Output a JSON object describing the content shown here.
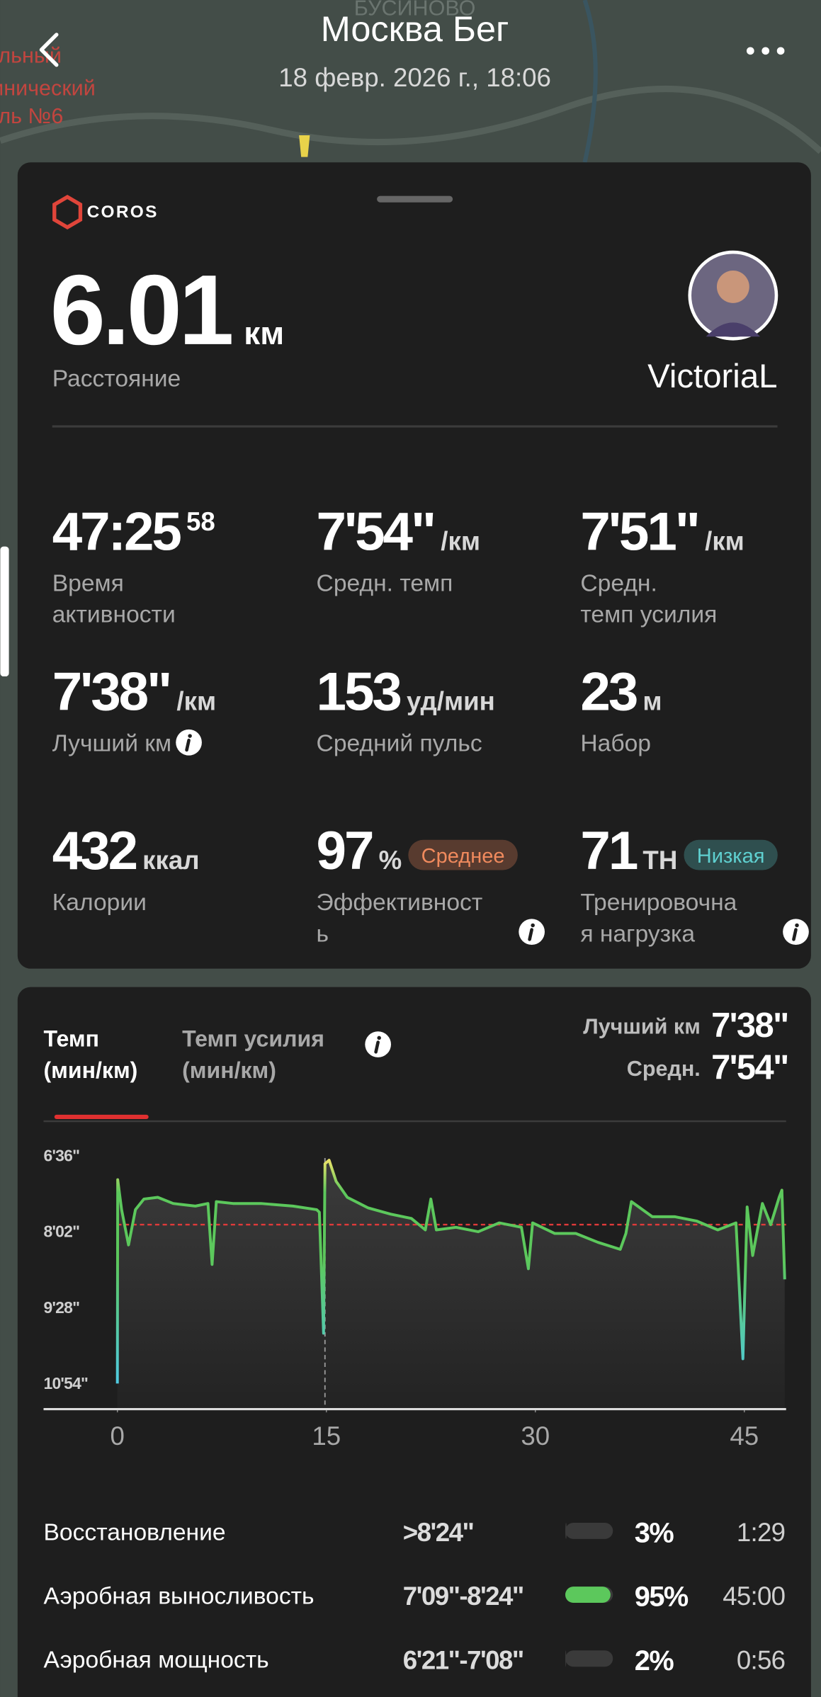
{
  "header": {
    "title": "Москва Бег",
    "subtitle": "18 февр. 2026 г., 18:06"
  },
  "map_labels": [
    "БУСИНОВО",
    "льный",
    "инический",
    "ль №6"
  ],
  "card": {
    "brand": "COROS",
    "distance": {
      "value": "6.01",
      "unit": "км",
      "label": "Расстояние"
    },
    "user": "VictoriaL",
    "stats": [
      {
        "value": "47:25",
        "sup": "58",
        "label": [
          "Время",
          "активности"
        ]
      },
      {
        "value": "7'54\"",
        "unit": "/км",
        "label": [
          "Средн. темп"
        ]
      },
      {
        "value": "7'51\"",
        "unit": "/км",
        "label": [
          "Средн.",
          "темп усилия"
        ]
      },
      {
        "value": "7'38\"",
        "unit": "/км",
        "label": [
          "Лучший км"
        ],
        "info_icon": true
      },
      {
        "value": "153",
        "unit": "уд/мин",
        "label": [
          "Средний пульс"
        ]
      },
      {
        "value": "23",
        "unit": "м",
        "label": [
          "Набор"
        ]
      },
      {
        "value": "432",
        "unit": "ккал",
        "label": [
          "Калории"
        ]
      },
      {
        "value": "97",
        "unit": "%",
        "badge": "Среднее",
        "badge_color": "#f08a5d",
        "label": [
          "Эффективност",
          "ь"
        ],
        "info_icon": true
      },
      {
        "value": "71",
        "unit": "ТН",
        "badge": "Низкая",
        "badge_color": "#5fd0d0",
        "label": [
          "Тренировочна",
          "я нагрузка"
        ],
        "info_icon": true
      }
    ]
  },
  "chart_section": {
    "tabs": [
      [
        "Темп",
        "(мин/км)"
      ],
      [
        "Темп усилия",
        "(мин/км)"
      ]
    ],
    "summary": [
      {
        "label": "Лучший км",
        "value": "7'38\""
      },
      {
        "label": "Средн.",
        "value": "7'54\""
      }
    ],
    "pace_chart": {
      "type": "line",
      "x": [
        0,
        0.02,
        0.3,
        0.8,
        1.3,
        1.9,
        2.9,
        4.0,
        5.6,
        6.5,
        6.8,
        7.1,
        8.3,
        10.3,
        12.6,
        14.3,
        14.5,
        14.8,
        14.9,
        15.2,
        15.7,
        16.5,
        18.0,
        19.6,
        21.1,
        22.1,
        22.5,
        22.9,
        24.3,
        25.9,
        27.4,
        29.0,
        29.5,
        29.8,
        31.4,
        32.9,
        34.5,
        36.1,
        36.5,
        36.9,
        38.4,
        40.0,
        41.6,
        43.1,
        44.4,
        44.9,
        45.2,
        45.6,
        46.3,
        46.9,
        47.5,
        47.7,
        47.9
      ],
      "values": [
        654,
        423,
        457,
        497,
        457,
        445,
        443,
        450,
        453,
        450,
        519,
        448,
        450,
        450,
        453,
        457,
        460,
        597,
        405,
        401,
        425,
        443,
        455,
        462,
        467,
        480,
        445,
        480,
        477,
        482,
        472,
        477,
        524,
        472,
        484,
        484,
        494,
        502,
        484,
        448,
        465,
        465,
        470,
        480,
        472,
        626,
        454,
        509,
        450,
        474,
        443,
        435,
        536
      ],
      "xlim": [
        -5.3,
        48.0
      ],
      "ylim": [
        374,
        683
      ],
      "y_inverted": true,
      "xticks": [
        0,
        15,
        30,
        45
      ],
      "yticks": [
        {
          "value": 396,
          "label": "6'36\""
        },
        {
          "value": 482,
          "label": "8'02\""
        },
        {
          "value": 568,
          "label": "9'28\""
        },
        {
          "value": 654,
          "label": "10'54\""
        }
      ],
      "reference_line": 474,
      "reference_color": "#e03a3a",
      "marker_x": 14.9,
      "colors": [
        "#f3e46a",
        "#5cc85c",
        "#4fcbe6"
      ]
    },
    "zones": [
      {
        "name": "Восстановление",
        "range": ">8'24\"",
        "percent": 3,
        "percent_label": "3%",
        "time": "1:29"
      },
      {
        "name": "Аэробная выносливость",
        "range": "7'09\"-8'24\"",
        "percent": 95,
        "percent_label": "95%",
        "time": "45:00"
      },
      {
        "name": "Аэробная мощность",
        "range": "6'21\"-7'08\"",
        "percent": 2,
        "percent_label": "2%",
        "time": "0:56"
      }
    ]
  }
}
